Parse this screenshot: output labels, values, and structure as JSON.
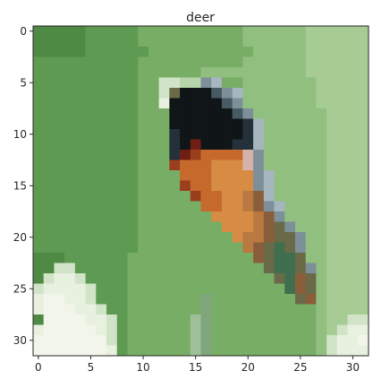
{
  "chart_data": {
    "type": "heatmap",
    "title": "deer",
    "xlabel": "",
    "ylabel": "",
    "xlim": [
      -0.5,
      31.5
    ],
    "ylim": [
      31.5,
      -0.5
    ],
    "grid": false,
    "x_ticks": [
      0,
      5,
      10,
      15,
      20,
      25,
      30
    ],
    "y_ticks": [
      0,
      5,
      10,
      15,
      20,
      25,
      30
    ],
    "image": {
      "width": 32,
      "height": 32,
      "description": "low-resolution RGB image; pixel grid rendered as colored cells",
      "palette": {
        "A": "#4f8a45",
        "B": "#5f9a52",
        "C": "#78ad66",
        "D": "#90bf80",
        "E": "#a6cc94",
        "F": "#b7d5ab",
        "G": "#d2e4c8",
        "H": "#e8f0e0",
        "I": "#f2f6ea",
        "J": "#101517",
        "K": "#25313a",
        "L": "#485a63",
        "M": "#7d8f98",
        "N": "#a6b6bf",
        "O": "#d6b3a8",
        "P": "#6f1e12",
        "Q": "#9a3e1b",
        "R": "#c56a2c",
        "S": "#d78c45",
        "T": "#b97941",
        "U": "#8a5e3a",
        "V": "#6a6a49",
        "W": "#3f6f4e",
        "X": "#2f5c3b",
        "Y": "#7fa67d",
        "Z": "#9fbf9b"
      },
      "rows": [
        "AAAAABBBBBCCCCCCCCCCDDDDDDEEEEEE",
        "AAAAABBBBBCCCCCCCCCCDDDDDDEEEEEE",
        "AAAAABBBBBBCCCCCCCCCCDDDDDEEEEEE",
        "BBBBBBBBBBCCCCCCCCCCDDDDDDEEEEEE",
        "BBBBBBBBBBCCCCCCDDDDDDDDDDEEEEEE",
        "BBBBBBBBBBCCGGFFMNCCDDDDDDDEEEEE",
        "BBBBBBBBBBCCGVJJJLMNDDDDDDDEEEEE",
        "BBBBBBBBBBCCHJJJJJLMDDDDDDDEEEEE",
        "BBBBBBBBBBCCCJJJJJJLMDDDDDDDEEEE",
        "BBBBBBBBBBCCCJJJJJJJKNDDDDDDEEEE",
        "BBBBBBBBBBCCCKJJJJJJKNDDDDDDEEEE",
        "BBBBBBBBBBCCCKJPJJJKKNDDDDDDEEEE",
        "BBBBBBBBBBCCCKPQRRRROMDDDDDDEEEE",
        "BBBBBBBBBBCCCQRRRSSSOMDDDDDDEEEE",
        "BBBBBBBBBBCCCCRRRSSSSMNDDDDDEEEE",
        "BBBBBBBBBBCCCCQRRSSSSMNDDDDDEEEE",
        "BBBBBBBBBBCCCCCQRRSSTUNDDDDDEEEE",
        "BBBBBBBBBBCCCCCCRRSSTUMNDDDDEEEE",
        "BBBBBBBBBBCCCCCCCSSSSTUMDDDDEEEE",
        "BBBBBBBBBBCCCCCCCCSSSTUVMDDDEEEE",
        "BBBBBBBBBBCCCCCCCCCSTTUVVMDDEEEE",
        "BBBBBBBBBBCCCCCCCCCCTUVWVMDDEEEE",
        "AAABBBBBBCCCCCCCCCCCCUVWWVDDEEEE",
        "AAGGBBBBBCCCCCCCCCCCCCVWWVMDEEEE",
        "AGHHGBBBBCCCCCCCCCCCCCCVWUVDEEEE",
        "GHHHHGBBBCCCCCCCCCCCCCCCWUVDEEEE",
        "HIIHHGBBBCCCCCCCYCCCCCCCCVUDEEEE",
        "HIIIHHGBBCCCCCCCYCCCCCCCCCCDEEEE",
        "AIIIIHHGBCCCCCCZYCCCCCCCCCCDEEGG",
        "HIIIIIHGBCCCCCCZYCCCCCCCCCCDEGHH",
        "IIIIIIIGBCCCCCCZYCCCCCCCCCCDGHHI",
        "IIIIIIIHBCCCCCCZYCCCCCCCCCCDGHHH"
      ]
    }
  }
}
